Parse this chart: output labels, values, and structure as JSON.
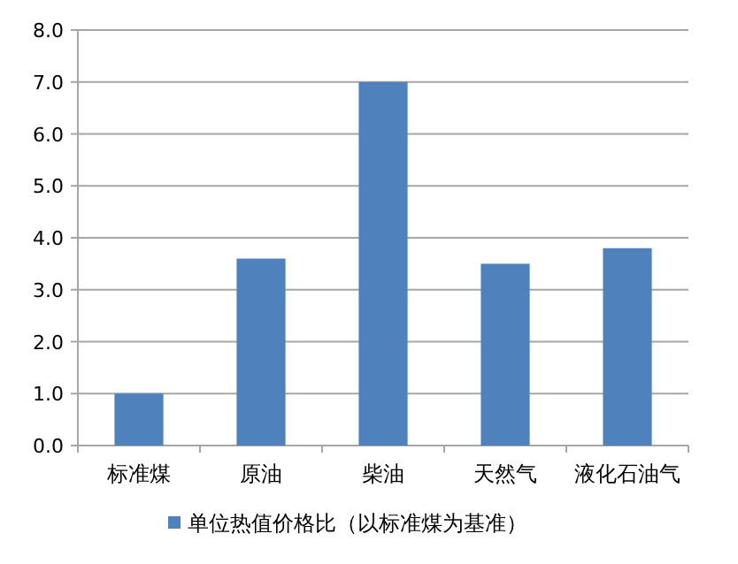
{
  "chart_data": {
    "type": "bar",
    "categories": [
      "标准煤",
      "原油",
      "柴油",
      "天然气",
      "液化石油气"
    ],
    "series": [
      {
        "name": "单位热值价格比（以标准煤为基准）",
        "color": "#4f81bd",
        "values": [
          1.0,
          3.6,
          7.0,
          3.5,
          3.8
        ]
      }
    ],
    "ylim": [
      0,
      8
    ],
    "yticks": [
      {
        "value": 0,
        "label": "0.0"
      },
      {
        "value": 1,
        "label": "1.0"
      },
      {
        "value": 2,
        "label": "2.0"
      },
      {
        "value": 3,
        "label": "3.0"
      },
      {
        "value": 4,
        "label": "4.0"
      },
      {
        "value": 5,
        "label": "5.0"
      },
      {
        "value": 6,
        "label": "6.0"
      },
      {
        "value": 7,
        "label": "7.0"
      },
      {
        "value": 8,
        "label": "8.0"
      }
    ],
    "grid": "y",
    "legend": "bottom"
  }
}
